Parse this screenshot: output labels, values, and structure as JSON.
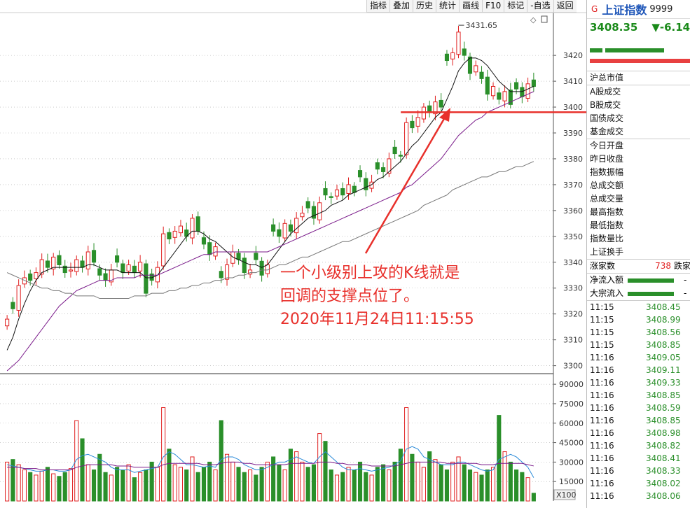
{
  "toolbar": [
    "指标",
    "叠加",
    "历史",
    "统计",
    "画线",
    "F10",
    "标记",
    "-自选",
    "返回"
  ],
  "quote": {
    "badge": "G",
    "name": "上证指数",
    "code": "9999",
    "price": "3408.35",
    "change": "▼-6.14",
    "color_up": "#e02020",
    "color_down": "#2a8f2a"
  },
  "info_labels": [
    "沪总市值",
    "A股成交",
    "B股成交",
    "国债成交",
    "基金成交"
  ],
  "info_labels2": [
    "今日开盘",
    "昨日收盘",
    "指数振幅",
    "总成交额",
    "总成交量",
    "最高指数",
    "最低指数",
    "指数量比",
    "上证换手"
  ],
  "rise_fall": {
    "rise_label": "涨家数",
    "rise_count": "738",
    "fall_label": "跌家"
  },
  "flows": [
    {
      "label": "净流入额",
      "dash": "-"
    },
    {
      "label": "大宗流入",
      "dash": "-"
    }
  ],
  "ticks": [
    {
      "t": "11:15",
      "p": "3408.45"
    },
    {
      "t": "11:15",
      "p": "3408.99"
    },
    {
      "t": "11:15",
      "p": "3408.56"
    },
    {
      "t": "11:15",
      "p": "3408.85"
    },
    {
      "t": "11:16",
      "p": "3409.05"
    },
    {
      "t": "11:16",
      "p": "3409.11"
    },
    {
      "t": "11:16",
      "p": "3409.33"
    },
    {
      "t": "11:16",
      "p": "3408.85"
    },
    {
      "t": "11:16",
      "p": "3408.59"
    },
    {
      "t": "11:16",
      "p": "3408.85"
    },
    {
      "t": "11:16",
      "p": "3408.98"
    },
    {
      "t": "11:16",
      "p": "3408.82"
    },
    {
      "t": "11:16",
      "p": "3408.41"
    },
    {
      "t": "11:16",
      "p": "3408.33"
    },
    {
      "t": "11:16",
      "p": "3408.02"
    },
    {
      "t": "11:16",
      "p": "3408.06"
    }
  ],
  "annotation": [
    "一个小级别上攻的K线就是",
    "回调的支撑点位了。",
    "2020年11月24日11:15:55"
  ],
  "chart_data": {
    "type": "candlestick",
    "price_axis": {
      "min": 3298,
      "max": 3436,
      "ticks": [
        3300,
        3310,
        3320,
        3330,
        3340,
        3350,
        3360,
        3370,
        3380,
        3390,
        3400,
        3410,
        3420
      ]
    },
    "volume_axis": {
      "min": 0,
      "max": 96000,
      "ticks": [
        15000,
        30000,
        45000,
        60000,
        75000,
        90000
      ],
      "scale_label": "X100"
    },
    "high_label": "3431.65",
    "support_level": 3398,
    "closes": [
      3318,
      3322,
      3331,
      3334,
      3333,
      3336,
      3341,
      3338,
      3342,
      3339,
      3336,
      3337,
      3341,
      3338,
      3344,
      3340,
      3335,
      3333,
      3337,
      3340,
      3336,
      3339,
      3336,
      3340,
      3328,
      3333,
      3338,
      3351,
      3349,
      3352,
      3354,
      3350,
      3357,
      3352,
      3347,
      3343,
      3346,
      3334,
      3339,
      3344,
      3341,
      3336,
      3337,
      3341,
      3335,
      3339,
      3352,
      3350,
      3355,
      3352,
      3357,
      3359,
      3361,
      3357,
      3363,
      3366,
      3365,
      3368,
      3366,
      3370,
      3367,
      3373,
      3368,
      3371,
      3376,
      3375,
      3380,
      3382,
      3381,
      3394,
      3392,
      3396,
      3400,
      3398,
      3402,
      3400,
      3418,
      3421,
      3429,
      3420,
      3413,
      3416,
      3411,
      3405,
      3408,
      3403,
      3406,
      3401,
      3407,
      3404,
      3409,
      3408
    ],
    "ma_short": [
      3306,
      3311,
      3318,
      3324,
      3329,
      3333,
      3336,
      3337,
      3338,
      3338,
      3338,
      3338,
      3338,
      3338,
      3339,
      3339,
      3338,
      3337,
      3337,
      3337,
      3336,
      3336,
      3336,
      3336,
      3334,
      3334,
      3335,
      3338,
      3341,
      3344,
      3347,
      3350,
      3352,
      3352,
      3351,
      3349,
      3348,
      3346,
      3344,
      3342,
      3341,
      3340,
      3339,
      3339,
      3338,
      3339,
      3342,
      3345,
      3348,
      3351,
      3353,
      3355,
      3357,
      3358,
      3359,
      3360,
      3362,
      3363,
      3364,
      3366,
      3367,
      3368,
      3369,
      3370,
      3372,
      3373,
      3375,
      3377,
      3379,
      3382,
      3385,
      3387,
      3390,
      3393,
      3396,
      3398,
      3403,
      3408,
      3414,
      3417,
      3419,
      3419,
      3418,
      3416,
      3413,
      3410,
      3408,
      3406,
      3406,
      3406,
      3407,
      3408
    ],
    "ma_mid": [
      3298,
      3300,
      3302,
      3305,
      3308,
      3311,
      3314,
      3317,
      3320,
      3323,
      3325,
      3327,
      3329,
      3330,
      3331,
      3332,
      3333,
      3333,
      3333,
      3334,
      3334,
      3334,
      3334,
      3335,
      3335,
      3335,
      3335,
      3336,
      3337,
      3338,
      3339,
      3340,
      3341,
      3342,
      3343,
      3343,
      3344,
      3344,
      3344,
      3344,
      3344,
      3344,
      3344,
      3344,
      3344,
      3344,
      3345,
      3346,
      3347,
      3348,
      3349,
      3350,
      3351,
      3352,
      3353,
      3354,
      3355,
      3356,
      3357,
      3358,
      3359,
      3360,
      3361,
      3362,
      3363,
      3364,
      3365,
      3366,
      3367,
      3369,
      3370,
      3372,
      3374,
      3376,
      3378,
      3380,
      3383,
      3386,
      3389,
      3391,
      3393,
      3395,
      3396,
      3398,
      3399,
      3400,
      3401,
      3402,
      3403,
      3404,
      3405,
      3406
    ],
    "ma_long": [
      3336,
      3335,
      3334,
      3333,
      3332,
      3331,
      3330,
      3330,
      3329,
      3329,
      3328,
      3328,
      3327,
      3327,
      3327,
      3327,
      3326,
      3326,
      3326,
      3326,
      3326,
      3326,
      3327,
      3327,
      3327,
      3328,
      3328,
      3328,
      3329,
      3329,
      3330,
      3330,
      3331,
      3331,
      3332,
      3332,
      3333,
      3333,
      3334,
      3334,
      3335,
      3335,
      3336,
      3336,
      3337,
      3337,
      3338,
      3339,
      3339,
      3340,
      3341,
      3342,
      3342,
      3343,
      3344,
      3345,
      3346,
      3347,
      3348,
      3348,
      3349,
      3350,
      3351,
      3352,
      3353,
      3354,
      3355,
      3356,
      3357,
      3358,
      3359,
      3360,
      3362,
      3363,
      3364,
      3365,
      3366,
      3368,
      3369,
      3370,
      3371,
      3372,
      3373,
      3373,
      3374,
      3375,
      3375,
      3376,
      3377,
      3377,
      3378,
      3379
    ],
    "volumes": [
      30000,
      32000,
      28000,
      24000,
      22000,
      20000,
      23000,
      26000,
      21000,
      19000,
      22000,
      25000,
      62000,
      48000,
      28000,
      24000,
      36000,
      22000,
      20000,
      26000,
      24000,
      28000,
      18000,
      22000,
      24000,
      30000,
      26000,
      72000,
      40000,
      28000,
      26000,
      24000,
      34000,
      22000,
      26000,
      30000,
      24000,
      62000,
      36000,
      30000,
      26000,
      22000,
      24000,
      20000,
      26000,
      30000,
      34000,
      28000,
      24000,
      40000,
      38000,
      30000,
      26000,
      28000,
      52000,
      46000,
      24000,
      20000,
      22000,
      26000,
      24000,
      30000,
      22000,
      20000,
      26000,
      28000,
      24000,
      30000,
      40000,
      72000,
      36000,
      30000,
      26000,
      38000,
      32000,
      28000,
      24000,
      30000,
      34000,
      28000,
      24000,
      22000,
      20000,
      24000,
      26000,
      66000,
      38000,
      30000,
      24000,
      22000,
      18000,
      6000
    ],
    "vol_ma_short": [
      28000,
      27000,
      26000,
      25000,
      24000,
      23000,
      23000,
      24000,
      24000,
      23000,
      23000,
      24000,
      32000,
      35000,
      36000,
      34000,
      32000,
      30000,
      26000,
      24000,
      24000,
      24000,
      22000,
      23000,
      24000,
      25000,
      26000,
      34000,
      38000,
      36000,
      32000,
      28000,
      28000,
      27000,
      26000,
      27000,
      26000,
      32000,
      34000,
      34000,
      32000,
      28000,
      26000,
      24000,
      24000,
      26000,
      28000,
      30000,
      30000,
      32000,
      34000,
      32000,
      30000,
      29000,
      34000,
      38000,
      34000,
      30000,
      26000,
      24000,
      24000,
      25000,
      24000,
      23000,
      24000,
      25000,
      26000,
      28000,
      31000,
      40000,
      42000,
      40000,
      34000,
      32000,
      30000,
      28000,
      28000,
      28000,
      30000,
      30000,
      28000,
      26000,
      24000,
      23000,
      24000,
      32000,
      34000,
      36000,
      34000,
      30000,
      26000,
      18000
    ],
    "vol_ma_long": [
      26000,
      26000,
      26000,
      25000,
      25000,
      25000,
      24000,
      24000,
      24000,
      24000,
      24000,
      24000,
      26000,
      27000,
      28000,
      28000,
      28000,
      28000,
      28000,
      27000,
      27000,
      27000,
      26000,
      26000,
      26000,
      26000,
      26000,
      28000,
      29000,
      29000,
      29000,
      29000,
      29000,
      29000,
      28000,
      28000,
      28000,
      29000,
      30000,
      30000,
      30000,
      29000,
      29000,
      28000,
      28000,
      28000,
      28000,
      28000,
      28000,
      29000,
      29000,
      29000,
      29000,
      29000,
      30000,
      30000,
      30000,
      29000,
      29000,
      28000,
      28000,
      28000,
      28000,
      27000,
      27000,
      27000,
      27000,
      27000,
      28000,
      29000,
      30000,
      30000,
      30000,
      30000,
      30000,
      30000,
      29000,
      29000,
      29000,
      29000,
      29000,
      29000,
      28000,
      28000,
      28000,
      29000,
      29000,
      29000,
      29000,
      29000,
      28000,
      27000
    ]
  }
}
